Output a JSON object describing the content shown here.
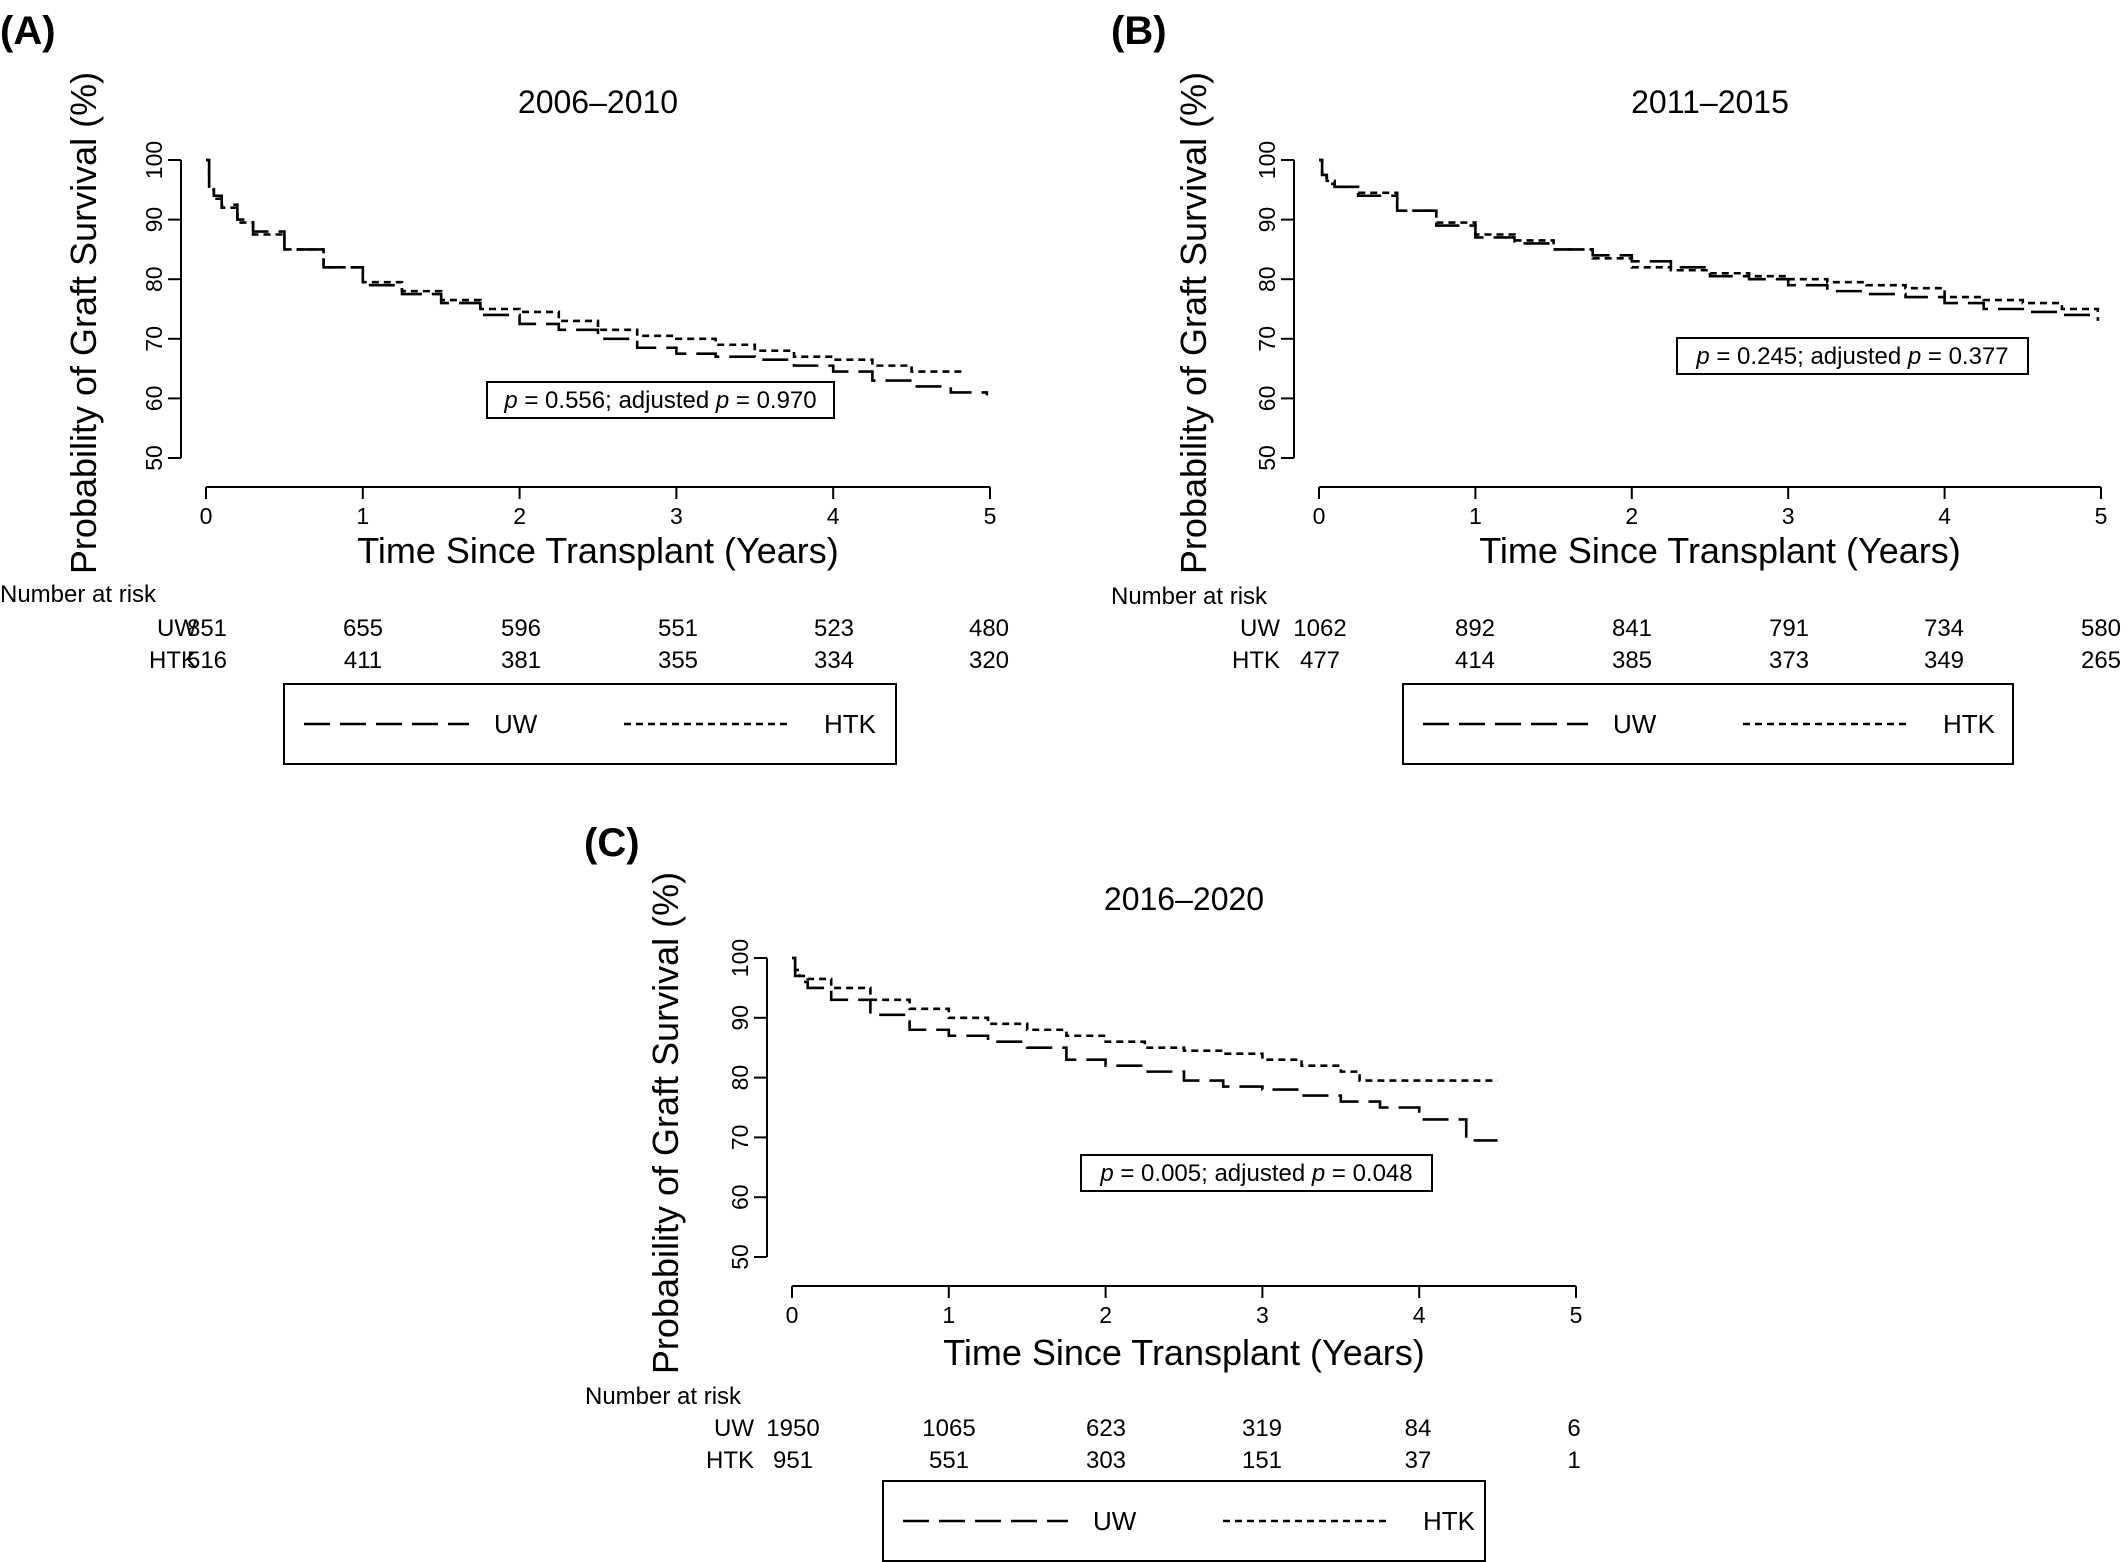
{
  "figure": {
    "panels": [
      {
        "letter": "(A)",
        "title": "2006–2010",
        "ylabel": "Probability of Graft Survival (%)",
        "xlabel": "Time Since Transplant (Years)",
        "y_ticks": [
          "50",
          "60",
          "70",
          "80",
          "90",
          "100"
        ],
        "x_ticks": [
          "0",
          "1",
          "2",
          "3",
          "4",
          "5"
        ],
        "pvalue": {
          "p": "p",
          "p_text": " = 0.556; adjusted ",
          "p_adj": "p",
          "p_adj_text": " = 0.970"
        },
        "risk": {
          "header": "Number at risk",
          "rows": [
            {
              "label": "UW",
              "values": [
                "851",
                "655",
                "596",
                "551",
                "523",
                "480"
              ]
            },
            {
              "label": "HTK",
              "values": [
                "516",
                "411",
                "381",
                "355",
                "334",
                "320"
              ]
            }
          ]
        },
        "legend": [
          "UW",
          "HTK"
        ]
      },
      {
        "letter": "(B)",
        "title": "2011–2015",
        "ylabel": "Probability of Graft Survival (%)",
        "xlabel": "Time Since Transplant (Years)",
        "y_ticks": [
          "50",
          "60",
          "70",
          "80",
          "90",
          "100"
        ],
        "x_ticks": [
          "0",
          "1",
          "2",
          "3",
          "4",
          "5"
        ],
        "pvalue": {
          "p": "p",
          "p_text": " = 0.245; adjusted ",
          "p_adj": "p",
          "p_adj_text": " = 0.377"
        },
        "risk": {
          "header": "Number at risk",
          "rows": [
            {
              "label": "UW",
              "values": [
                "1062",
                "892",
                "841",
                "791",
                "734",
                "580"
              ]
            },
            {
              "label": "HTK",
              "values": [
                "477",
                "414",
                "385",
                "373",
                "349",
                "265"
              ]
            }
          ]
        },
        "legend": [
          "UW",
          "HTK"
        ]
      },
      {
        "letter": "(C)",
        "title": "2016–2020",
        "ylabel": "Probability of Graft Survival (%)",
        "xlabel": "Time Since Transplant (Years)",
        "y_ticks": [
          "50",
          "60",
          "70",
          "80",
          "90",
          "100"
        ],
        "x_ticks": [
          "0",
          "1",
          "2",
          "3",
          "4",
          "5"
        ],
        "pvalue": {
          "p": "p",
          "p_text": " = 0.005; adjusted ",
          "p_adj": "p",
          "p_adj_text": " = 0.048"
        },
        "risk": {
          "header": "Number at risk",
          "rows": [
            {
              "label": "UW",
              "values": [
                "1950",
                "1065",
                "623",
                "319",
                "84",
                "6"
              ]
            },
            {
              "label": "HTK",
              "values": [
                "951",
                "551",
                "303",
                "151",
                "37",
                "1"
              ]
            }
          ]
        },
        "legend": [
          "UW",
          "HTK"
        ]
      }
    ]
  },
  "chart_data": [
    {
      "type": "line",
      "title": "2006–2010",
      "xlabel": "Time Since Transplant (Years)",
      "ylabel": "Probability of Graft Survival (%)",
      "xlim": [
        0,
        5
      ],
      "ylim": [
        45,
        100
      ],
      "grid": false,
      "legend_position": "bottom",
      "series": [
        {
          "name": "UW",
          "style": "dashed",
          "x": [
            0,
            0.02,
            0.05,
            0.1,
            0.2,
            0.3,
            0.5,
            0.75,
            1.0,
            1.25,
            1.5,
            1.75,
            2.0,
            2.25,
            2.5,
            2.75,
            3.0,
            3.25,
            3.5,
            3.75,
            4.0,
            4.25,
            4.5,
            4.75,
            4.98
          ],
          "y": [
            100,
            96,
            94,
            92.5,
            90,
            88,
            85,
            82,
            79,
            77.5,
            76,
            74,
            72.5,
            71.5,
            70,
            68.5,
            67.5,
            67,
            66.5,
            65.5,
            64.5,
            63,
            62,
            61,
            60.5
          ]
        },
        {
          "name": "HTK",
          "style": "dotted",
          "x": [
            0,
            0.02,
            0.05,
            0.1,
            0.2,
            0.3,
            0.5,
            0.75,
            1.0,
            1.25,
            1.5,
            1.75,
            2.0,
            2.25,
            2.5,
            2.75,
            3.0,
            3.25,
            3.5,
            3.75,
            4.0,
            4.25,
            4.5,
            4.75,
            4.85
          ],
          "y": [
            100,
            95,
            93.5,
            92,
            89.5,
            87.5,
            85,
            82,
            79.5,
            78,
            76.5,
            75,
            74.5,
            73,
            71.5,
            70.5,
            70,
            69,
            68,
            67,
            66.5,
            65.5,
            64.5,
            64.5,
            64.5
          ]
        }
      ]
    },
    {
      "type": "line",
      "title": "2011–2015",
      "xlabel": "Time Since Transplant (Years)",
      "ylabel": "Probability of Graft Survival (%)",
      "xlim": [
        0,
        5
      ],
      "ylim": [
        45,
        100
      ],
      "grid": false,
      "legend_position": "bottom",
      "series": [
        {
          "name": "UW",
          "style": "dashed",
          "x": [
            0,
            0.02,
            0.05,
            0.1,
            0.25,
            0.5,
            0.75,
            1.0,
            1.25,
            1.5,
            1.75,
            2.0,
            2.25,
            2.5,
            2.75,
            3.0,
            3.25,
            3.5,
            3.75,
            4.0,
            4.25,
            4.5,
            4.75,
            4.98
          ],
          "y": [
            100,
            97.5,
            96,
            95.5,
            94,
            91.5,
            89,
            87,
            86,
            85,
            84,
            83,
            82,
            80.5,
            80,
            79,
            78,
            77.5,
            77,
            76,
            75,
            74.5,
            74,
            73
          ]
        },
        {
          "name": "HTK",
          "style": "dotted",
          "x": [
            0,
            0.02,
            0.05,
            0.1,
            0.25,
            0.5,
            0.75,
            1.0,
            1.25,
            1.5,
            1.75,
            2.0,
            2.25,
            2.5,
            2.75,
            3.0,
            3.25,
            3.5,
            3.75,
            4.0,
            4.25,
            4.5,
            4.75,
            4.98
          ],
          "y": [
            100,
            97,
            96.5,
            95.5,
            94.5,
            91.5,
            89.5,
            87.5,
            86.5,
            85,
            83.5,
            82,
            81.5,
            81,
            80.5,
            80,
            79.5,
            79,
            78.5,
            77,
            76.5,
            76,
            75,
            74.5
          ]
        }
      ]
    },
    {
      "type": "line",
      "title": "2016–2020",
      "xlabel": "Time Since Transplant (Years)",
      "ylabel": "Probability of Graft Survival (%)",
      "xlim": [
        0,
        5
      ],
      "ylim": [
        45,
        100
      ],
      "grid": false,
      "legend_position": "bottom",
      "series": [
        {
          "name": "UW",
          "style": "dashed",
          "x": [
            0,
            0.02,
            0.05,
            0.1,
            0.25,
            0.5,
            0.75,
            1.0,
            1.25,
            1.5,
            1.75,
            2.0,
            2.25,
            2.5,
            2.75,
            3.0,
            3.25,
            3.5,
            3.75,
            4.0,
            4.27,
            4.3,
            4.5
          ],
          "y": [
            100,
            97,
            96,
            95,
            93,
            90.5,
            88,
            87,
            86,
            85,
            83,
            82,
            81,
            79.5,
            78.5,
            78,
            77,
            76,
            75,
            73,
            73,
            69.5,
            69.5
          ]
        },
        {
          "name": "HTK",
          "style": "dotted",
          "x": [
            0,
            0.02,
            0.05,
            0.1,
            0.25,
            0.5,
            0.75,
            1.0,
            1.25,
            1.5,
            1.75,
            2.0,
            2.25,
            2.5,
            2.75,
            3.0,
            3.25,
            3.5,
            3.6,
            3.62,
            4.0,
            4.25,
            4.5
          ],
          "y": [
            100,
            98,
            97,
            96.5,
            95,
            93,
            91.5,
            90,
            89,
            88,
            87,
            86,
            85,
            84.5,
            84,
            83,
            82,
            81,
            81,
            79.5,
            79.5,
            79.5,
            79.5
          ]
        }
      ]
    }
  ]
}
